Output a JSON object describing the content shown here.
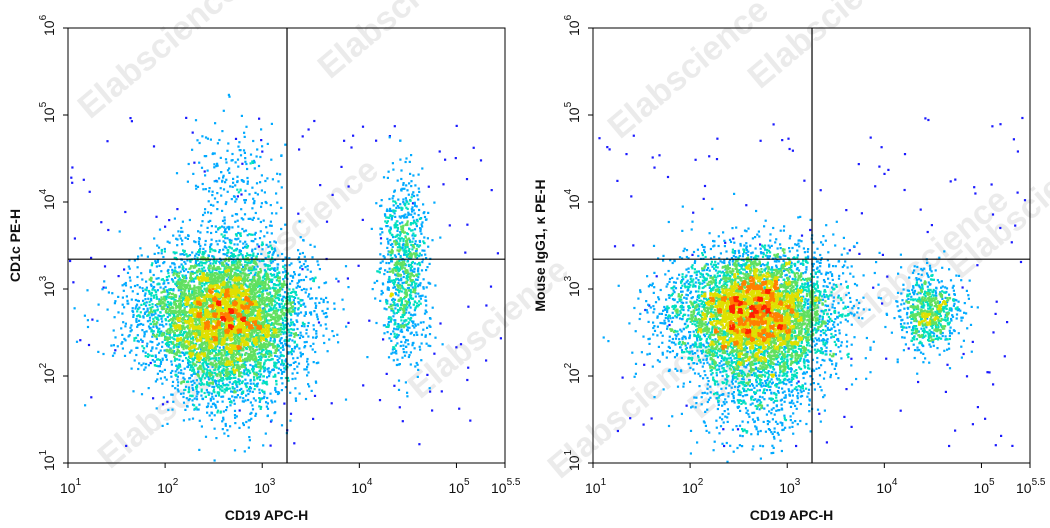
{
  "watermark": "Elabscience",
  "chart_data": [
    {
      "type": "scatter",
      "subtype": "flow-cytometry-density-dot-plot",
      "x_scale": "log",
      "y_scale": "log",
      "xlim": [
        10,
        316227.77
      ],
      "ylim": [
        10,
        1000000
      ],
      "xlabel": "CD19 APC-H",
      "ylabel": "CD1c PE-H",
      "x_ticks": [
        {
          "base": "10",
          "exp": "1"
        },
        {
          "base": "10",
          "exp": "2"
        },
        {
          "base": "10",
          "exp": "3"
        },
        {
          "base": "10",
          "exp": "4"
        },
        {
          "base": "10",
          "exp": "5"
        },
        {
          "base": "10",
          "exp": "5.5"
        }
      ],
      "y_ticks": [
        {
          "base": "10",
          "exp": "1"
        },
        {
          "base": "10",
          "exp": "2"
        },
        {
          "base": "10",
          "exp": "3"
        },
        {
          "base": "10",
          "exp": "4"
        },
        {
          "base": "10",
          "exp": "5"
        },
        {
          "base": "10",
          "exp": "6"
        }
      ],
      "gate": {
        "x": 1800,
        "y": 2200
      },
      "colormap": [
        "#1a1aff",
        "#00aaff",
        "#00e0c0",
        "#60e060",
        "#e0e000",
        "#ff8000",
        "#ff2000"
      ],
      "populations": [
        {
          "label": "CD19- main",
          "cx": 450,
          "cy": 550,
          "sx_decades": 0.38,
          "sy_decades": 0.38,
          "n": 5200,
          "core": true
        },
        {
          "label": "CD19- low tail",
          "cx": 400,
          "cy": 120,
          "sx_decades": 0.32,
          "sy_decades": 0.35,
          "n": 700
        },
        {
          "label": "CD19- low/left spread",
          "cx": 120,
          "cy": 500,
          "sx_decades": 0.35,
          "sy_decades": 0.3,
          "n": 500
        },
        {
          "label": "CD19- CD1c+",
          "cx": 500,
          "cy": 15000,
          "sx_decades": 0.25,
          "sy_decades": 0.35,
          "n": 220
        },
        {
          "label": "CD19+",
          "cx": 28000,
          "cy": 1800,
          "sx_decades": 0.12,
          "sy_decades": 0.5,
          "n": 900
        }
      ]
    },
    {
      "type": "scatter",
      "subtype": "flow-cytometry-density-dot-plot",
      "x_scale": "log",
      "y_scale": "log",
      "xlim": [
        10,
        316227.77
      ],
      "ylim": [
        10,
        1000000
      ],
      "xlabel": "CD19 APC-H",
      "ylabel": "Mouse IgG1, κ PE-H",
      "x_ticks": [
        {
          "base": "10",
          "exp": "1"
        },
        {
          "base": "10",
          "exp": "2"
        },
        {
          "base": "10",
          "exp": "3"
        },
        {
          "base": "10",
          "exp": "4"
        },
        {
          "base": "10",
          "exp": "5"
        },
        {
          "base": "10",
          "exp": "5.5"
        }
      ],
      "y_ticks": [
        {
          "base": "10",
          "exp": "1"
        },
        {
          "base": "10",
          "exp": "2"
        },
        {
          "base": "10",
          "exp": "3"
        },
        {
          "base": "10",
          "exp": "4"
        },
        {
          "base": "10",
          "exp": "5"
        },
        {
          "base": "10",
          "exp": "6"
        }
      ],
      "gate": {
        "x": 1800,
        "y": 2200
      },
      "colormap": [
        "#1a1aff",
        "#00aaff",
        "#00e0c0",
        "#60e060",
        "#e0e000",
        "#ff8000",
        "#ff2000"
      ],
      "populations": [
        {
          "label": "CD19- main",
          "cx": 500,
          "cy": 550,
          "sx_decades": 0.38,
          "sy_decades": 0.35,
          "n": 5200,
          "core": true
        },
        {
          "label": "CD19- low tail",
          "cx": 450,
          "cy": 100,
          "sx_decades": 0.3,
          "sy_decades": 0.38,
          "n": 800
        },
        {
          "label": "CD19- left spread",
          "cx": 130,
          "cy": 500,
          "sx_decades": 0.35,
          "sy_decades": 0.3,
          "n": 500
        },
        {
          "label": "CD19+",
          "cx": 28000,
          "cy": 550,
          "sx_decades": 0.15,
          "sy_decades": 0.22,
          "n": 700
        }
      ]
    }
  ]
}
